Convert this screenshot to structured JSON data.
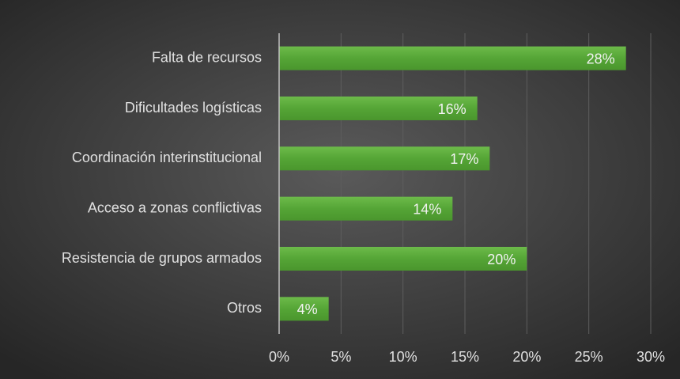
{
  "chart_data": {
    "type": "bar",
    "orientation": "horizontal",
    "categories": [
      "Falta de recursos",
      "Dificultades logísticas",
      "Coordinación interinstitucional",
      "Acceso a zonas conflictivas",
      "Resistencia de grupos armados",
      "Otros"
    ],
    "values": [
      28,
      16,
      17,
      14,
      20,
      4
    ],
    "value_labels": [
      "28%",
      "16%",
      "17%",
      "14%",
      "20%",
      "4%"
    ],
    "color": "#5aa83a",
    "xlim": [
      0,
      30
    ],
    "xticks": [
      {
        "value": 0,
        "label": "0%"
      },
      {
        "value": 5,
        "label": "5%"
      },
      {
        "value": 10,
        "label": "10%"
      },
      {
        "value": 15,
        "label": "15%"
      },
      {
        "value": 20,
        "label": "20%"
      },
      {
        "value": 25,
        "label": "25%"
      },
      {
        "value": 30,
        "label": "30%"
      }
    ],
    "grid": true
  }
}
